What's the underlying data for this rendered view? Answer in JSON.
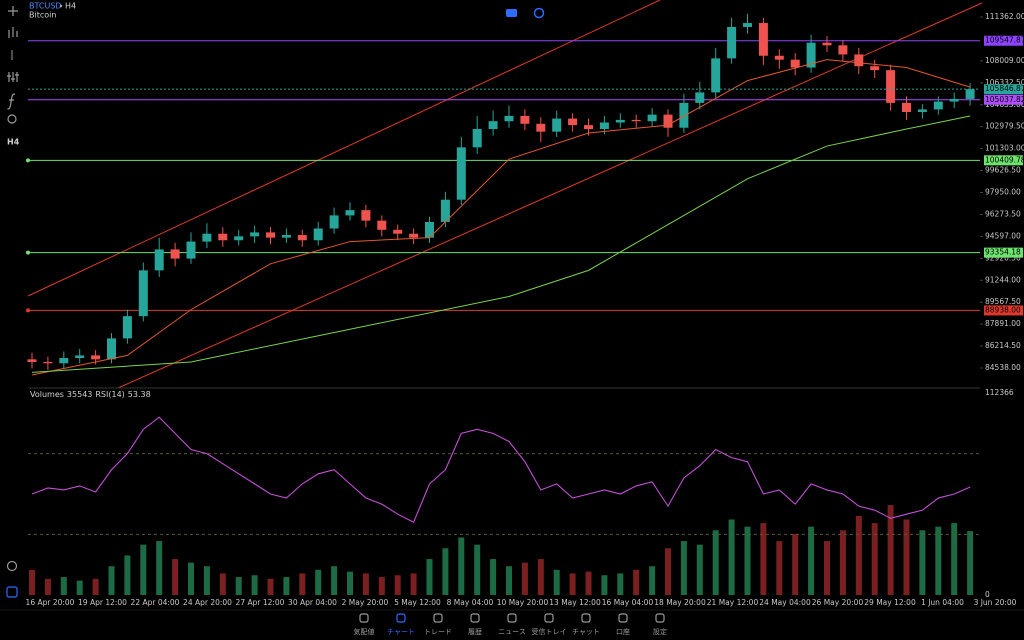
{
  "header": {
    "symbol": "BTCUSD",
    "timeframe": "H4",
    "name": "Bitcoin"
  },
  "chart_data": {
    "type": "candlestick",
    "open": [
      85200,
      85000,
      84900,
      85300,
      85500,
      85200,
      86800,
      88500,
      92000,
      93600,
      92900,
      94200,
      94800,
      94300,
      94600,
      94900,
      94500,
      94700,
      94300,
      95200,
      96200,
      96600,
      95800,
      95100,
      94800,
      94500,
      95700,
      97400,
      101400,
      102800,
      103400,
      103800,
      103200,
      102600,
      103600,
      103100,
      102800,
      103300,
      103500,
      103400,
      103900,
      102900,
      104800,
      105600,
      108200,
      110600,
      110900,
      108400,
      108100,
      107500,
      109400,
      109200,
      108500,
      107600,
      107300,
      104800,
      104100,
      104300,
      104900,
      105100
    ],
    "high": [
      85700,
      85400,
      85800,
      86000,
      85900,
      87200,
      89000,
      92600,
      94500,
      94100,
      94900,
      95600,
      95300,
      95100,
      95400,
      95300,
      95200,
      95100,
      95700,
      96800,
      97200,
      97000,
      96200,
      95500,
      95200,
      96100,
      98000,
      102200,
      103800,
      104200,
      104600,
      104300,
      103700,
      104200,
      104000,
      103600,
      103800,
      104000,
      103900,
      104400,
      104300,
      105500,
      106400,
      109000,
      111300,
      111600,
      111300,
      108900,
      108600,
      110000,
      109900,
      109600,
      109000,
      108100,
      107700,
      105300,
      104700,
      105300,
      105600,
      106300
    ],
    "low": [
      84500,
      84400,
      84500,
      84900,
      84800,
      84900,
      86400,
      88100,
      91500,
      92300,
      92500,
      93700,
      93800,
      93900,
      94100,
      94000,
      94100,
      93800,
      93900,
      94800,
      95800,
      95300,
      94600,
      94300,
      94000,
      94100,
      95300,
      97000,
      100900,
      102300,
      102900,
      102700,
      101800,
      102200,
      102600,
      102300,
      102400,
      102900,
      102900,
      103000,
      102200,
      102500,
      104300,
      105200,
      107800,
      110100,
      107700,
      107400,
      106900,
      107100,
      108700,
      108000,
      107000,
      106700,
      104200,
      103500,
      103600,
      103900,
      104400,
      104600
    ],
    "close": [
      85000,
      84900,
      85300,
      85500,
      85200,
      86800,
      88500,
      92000,
      93600,
      92900,
      94200,
      94800,
      94300,
      94600,
      94900,
      94500,
      94700,
      94300,
      95200,
      96200,
      96600,
      95800,
      95100,
      94800,
      94500,
      95700,
      97400,
      101400,
      102800,
      103400,
      103800,
      103200,
      102600,
      103600,
      103100,
      102800,
      103300,
      103500,
      103400,
      103900,
      102900,
      104800,
      105600,
      108200,
      110600,
      110900,
      108400,
      108100,
      107500,
      109400,
      109200,
      108500,
      107600,
      107300,
      104800,
      104100,
      104300,
      104900,
      105100,
      105846.87
    ],
    "up_color": "#26a69a",
    "down_color": "#ef5350",
    "ylim": [
      83010,
      112279
    ],
    "yticks": [
      {
        "value": 111362,
        "label": "111362.00"
      },
      {
        "value": 108009,
        "label": "108009.00"
      },
      {
        "value": 106332.5,
        "label": "106332.50"
      },
      {
        "value": 104655,
        "label": "104655.00"
      },
      {
        "value": 102979.5,
        "label": "102979.50"
      },
      {
        "value": 101303,
        "label": "101303.00"
      },
      {
        "value": 99626.5,
        "label": "99626.50"
      },
      {
        "value": 97950,
        "label": "97950.00"
      },
      {
        "value": 96273.5,
        "label": "96273.50"
      },
      {
        "value": 94597,
        "label": "94597.00"
      },
      {
        "value": 92920.5,
        "label": "92920.50"
      },
      {
        "value": 91244,
        "label": "91244.00"
      },
      {
        "value": 89567.5,
        "label": "89567.50"
      },
      {
        "value": 87891,
        "label": "87891.00"
      },
      {
        "value": 86214.5,
        "label": "86214.50"
      },
      {
        "value": 84538,
        "label": "84538.00"
      }
    ],
    "levels": [
      {
        "value": 109547.87,
        "color": "#8e44ff"
      },
      {
        "value": 105037.82,
        "color": "#b04cff"
      },
      {
        "value": 100409.78,
        "color": "#6ee36e"
      },
      {
        "value": 93354.18,
        "color": "#6ee36e"
      },
      {
        "value": 88938,
        "label": "88938.00",
        "color": "#e0392b"
      }
    ],
    "current_color": "#26a69a",
    "moving_averages": [
      {
        "color": "#e4572e",
        "x": [
          0,
          6,
          10,
          15,
          20,
          25,
          30,
          35,
          40,
          45,
          50,
          55,
          59
        ],
        "values": [
          84000,
          85500,
          89000,
          92500,
          94200,
          94500,
          100500,
          102500,
          103100,
          106500,
          108100,
          107500,
          106000
        ]
      },
      {
        "color": "#7bd34f",
        "x": [
          0,
          10,
          20,
          30,
          35,
          40,
          45,
          50,
          55,
          59
        ],
        "values": [
          84200,
          85000,
          87500,
          90000,
          92000,
          95500,
          99000,
          101500,
          102800,
          103800
        ]
      }
    ],
    "xlabels": [
      "16 Apr 20:00",
      "19 Apr 12:00",
      "22 Apr 04:00",
      "24 Apr 20:00",
      "27 Apr 12:00",
      "30 Apr 04:00",
      "2 May 20:00",
      "5 May 12:00",
      "8 May 04:00",
      "10 May 20:00",
      "13 May 12:00",
      "16 May 04:00",
      "18 May 20:00",
      "21 May 12:00",
      "24 May 04:00",
      "26 May 20:00",
      "29 May 12:00",
      "1 Jun 04:00",
      "3 Jun 20:00"
    ]
  },
  "indicator": {
    "volume_label": "Volumes",
    "rsi_label": "RSI(14)",
    "volumes": [
      14000,
      9000,
      10000,
      8000,
      9000,
      16000,
      22000,
      28000,
      30000,
      20000,
      18000,
      16000,
      12000,
      10000,
      11000,
      9000,
      10000,
      12000,
      14000,
      16000,
      13000,
      12000,
      10000,
      11000,
      12000,
      20000,
      26000,
      32000,
      28000,
      20000,
      16000,
      18000,
      20000,
      14000,
      12000,
      13000,
      11000,
      12000,
      14000,
      16000,
      26000,
      30000,
      28000,
      36000,
      42000,
      38000,
      40000,
      30000,
      34000,
      38000,
      30000,
      36000,
      44000,
      40000,
      50000,
      42000,
      36000,
      38000,
      40000,
      35543
    ],
    "volume_ylim": [
      0,
      112366
    ],
    "volume_ticks": [
      112366,
      0
    ],
    "rsi": [
      50,
      53,
      52,
      54,
      51,
      62,
      70,
      82,
      88,
      80,
      72,
      70,
      65,
      60,
      55,
      50,
      48,
      55,
      60,
      62,
      55,
      48,
      45,
      40,
      36,
      55,
      62,
      80,
      82,
      80,
      76,
      66,
      52,
      55,
      48,
      50,
      52,
      50,
      54,
      56,
      44,
      58,
      64,
      72,
      68,
      66,
      50,
      52,
      45,
      55,
      52,
      50,
      44,
      42,
      38,
      40,
      42,
      48,
      50,
      53.38
    ],
    "rsi_ylim": [
      0,
      100
    ],
    "rsi_levels": [
      70,
      30
    ],
    "rsi_color": "#c34fd6"
  },
  "nav": {
    "items": [
      "気配値",
      "チャート",
      "トレード",
      "履歴",
      "ニュース",
      "受信トレイ",
      "チャット",
      "口座",
      "設定"
    ],
    "active": 1,
    "active_color": "#2f6bff"
  }
}
